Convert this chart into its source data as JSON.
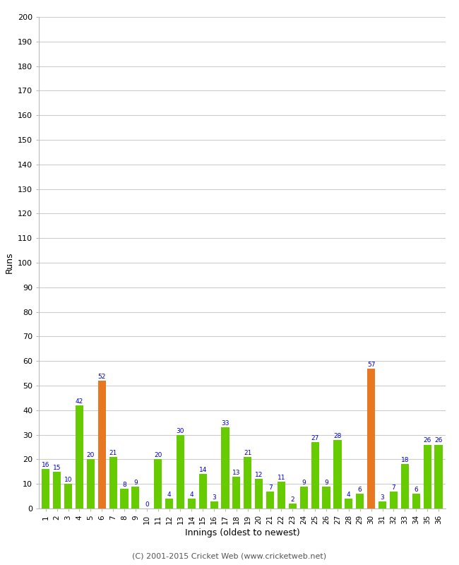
{
  "xlabel": "Innings (oldest to newest)",
  "ylabel": "Runs",
  "ylim": [
    0,
    200
  ],
  "yticks": [
    0,
    10,
    20,
    30,
    40,
    50,
    60,
    70,
    80,
    90,
    100,
    110,
    120,
    130,
    140,
    150,
    160,
    170,
    180,
    190,
    200
  ],
  "innings": [
    1,
    2,
    3,
    4,
    5,
    6,
    7,
    8,
    9,
    10,
    11,
    12,
    13,
    14,
    15,
    16,
    17,
    18,
    19,
    20,
    21,
    22,
    23,
    24,
    25,
    26,
    27,
    28,
    29,
    30,
    31,
    32,
    33,
    34,
    35,
    36
  ],
  "values": [
    16,
    15,
    10,
    42,
    20,
    52,
    21,
    8,
    9,
    0,
    20,
    4,
    30,
    4,
    14,
    3,
    33,
    13,
    21,
    12,
    7,
    11,
    2,
    9,
    27,
    9,
    28,
    4,
    6,
    57,
    3,
    7,
    18,
    6,
    26,
    26
  ],
  "colors": [
    "#66cc00",
    "#66cc00",
    "#66cc00",
    "#66cc00",
    "#66cc00",
    "#e87722",
    "#66cc00",
    "#66cc00",
    "#66cc00",
    "#66cc00",
    "#66cc00",
    "#66cc00",
    "#66cc00",
    "#66cc00",
    "#66cc00",
    "#66cc00",
    "#66cc00",
    "#66cc00",
    "#66cc00",
    "#66cc00",
    "#66cc00",
    "#66cc00",
    "#66cc00",
    "#66cc00",
    "#66cc00",
    "#66cc00",
    "#66cc00",
    "#66cc00",
    "#66cc00",
    "#e87722",
    "#66cc00",
    "#66cc00",
    "#66cc00",
    "#66cc00",
    "#66cc00",
    "#66cc00"
  ],
  "label_color": "#0000cc",
  "background_color": "#ffffff",
  "grid_color": "#cccccc",
  "footer": "(C) 2001-2015 Cricket Web (www.cricketweb.net)",
  "bar_width": 0.7
}
